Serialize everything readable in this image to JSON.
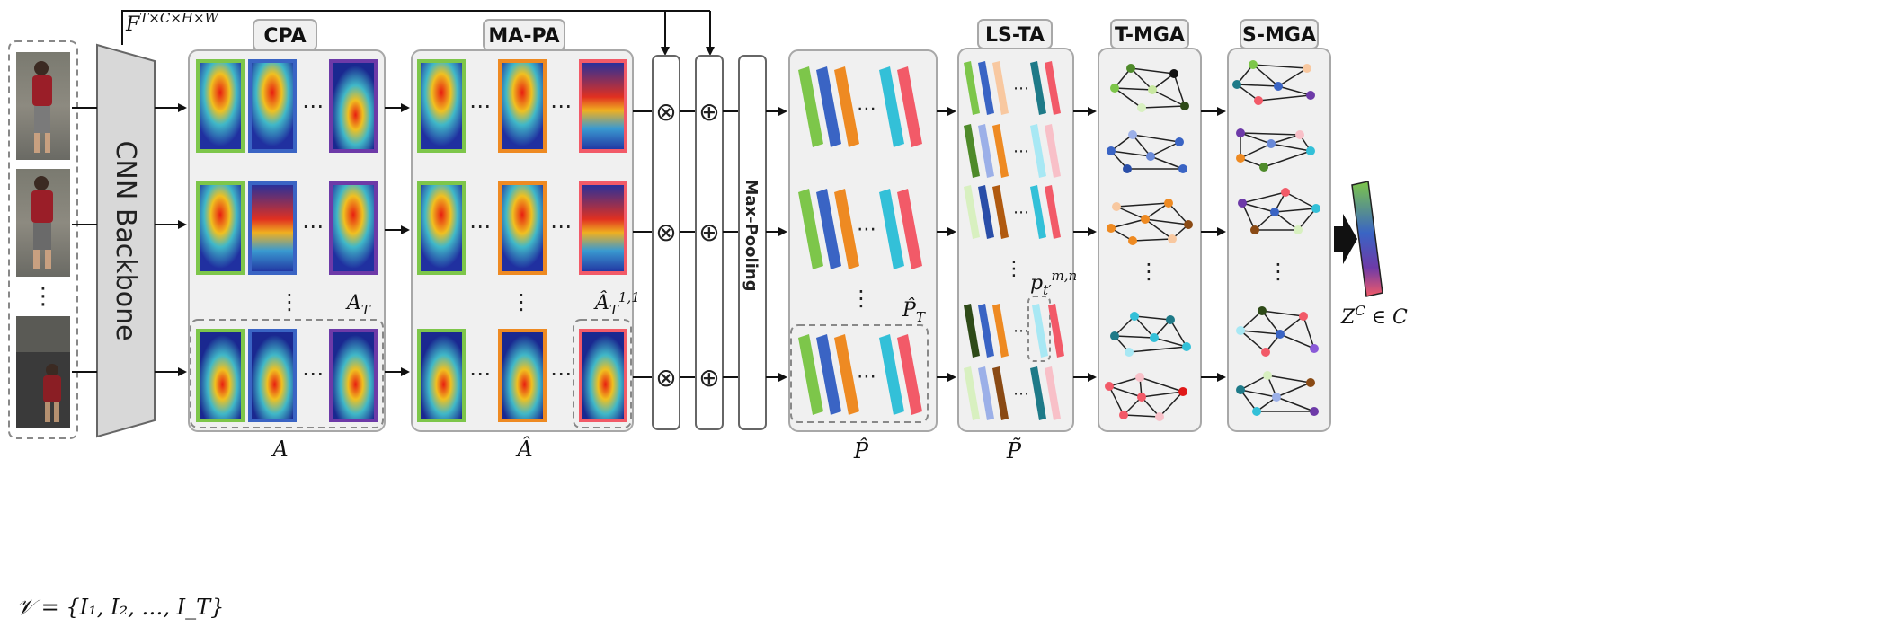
{
  "input": {
    "label": "𝒱 = {I₁, I₂, …, I_T}",
    "frame_count_visible": 3
  },
  "feature_label": "F",
  "feature_label_sup": "T×C×H×W",
  "backbone_label": "CNN Backbone",
  "modules": {
    "cpa": {
      "title": "CPA",
      "bottom_label": "A",
      "corner_label": "A",
      "corner_sub": "T"
    },
    "mapa": {
      "title": "MA-PA",
      "bottom_label": "Â",
      "corner_label": "Â",
      "corner_sub": "T",
      "corner_sup": "1,1"
    },
    "maxpool": {
      "title": "Max-Pooling"
    },
    "parts": {
      "bottom_label": "P̂",
      "corner_label": "P̂",
      "corner_sub": "T"
    },
    "lsta": {
      "title": "LS-TA",
      "bottom_label": "P̃",
      "node_label": "p",
      "node_sub": "t′",
      "node_sup": "m,n"
    },
    "tmga": {
      "title": "T-MGA"
    },
    "smga": {
      "title": "S-MGA"
    }
  },
  "operators": {
    "multiply": "⊗",
    "add": "⊕"
  },
  "ellipsis": "⋯",
  "vertical_ellipsis": "⋮",
  "output": {
    "label_main": "Z",
    "label_sup": "C",
    "label_rest": " ∈ C"
  },
  "colors": {
    "green": "#7dc64a",
    "blue": "#3a64c4",
    "orange": "#ee8a22",
    "purple": "#6d3aa8",
    "cyan": "#33c0d8",
    "red": "#f25a68",
    "panel": "#f0f0f0",
    "panel_stroke": "#a8a8a8"
  }
}
